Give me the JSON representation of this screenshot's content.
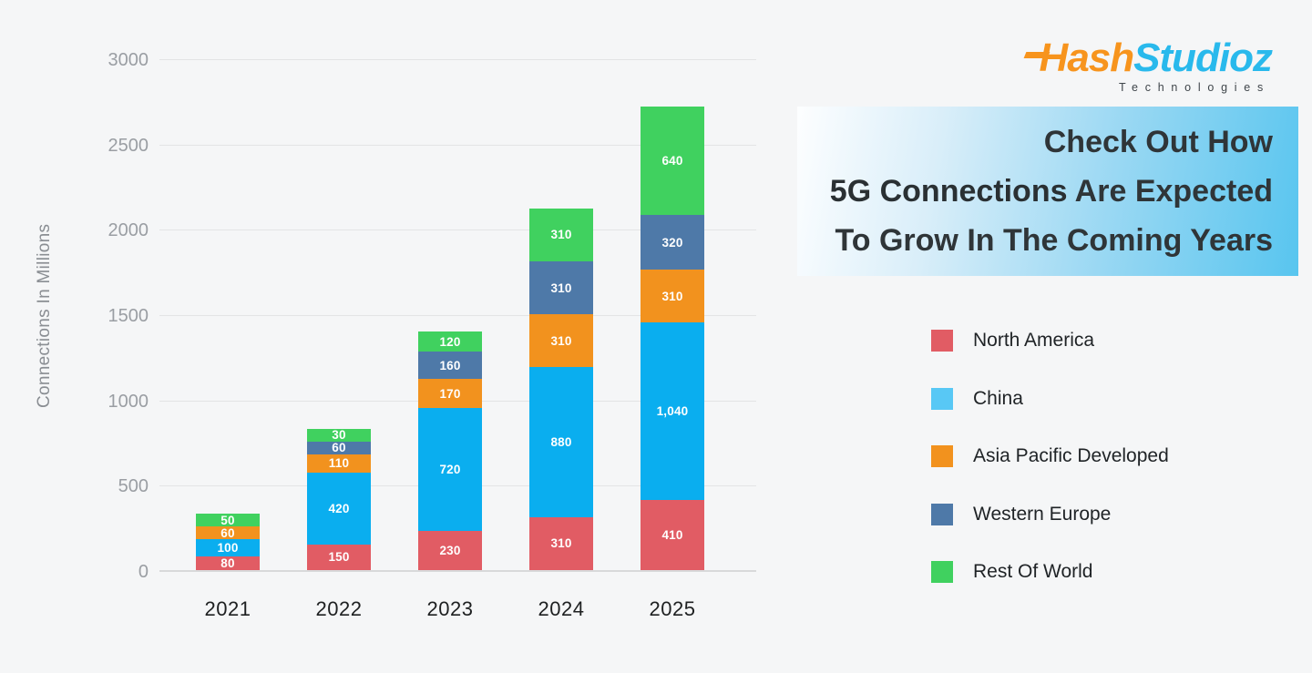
{
  "page": {
    "background": "#F5F6F7"
  },
  "logo": {
    "word_part1": "Hash",
    "word_part2": "Studioz",
    "subtitle": "Technologies",
    "color_part1": "#F7941D",
    "color_part2": "#29B9EC"
  },
  "headline": {
    "line1": "Check Out How",
    "line2_bold": "5G Connections",
    "line2_rest": " Are Expected",
    "line3": "To Grow In The Coming Years"
  },
  "legend": {
    "items": [
      {
        "label": "North America",
        "color": "#E15C64"
      },
      {
        "label": "China",
        "color": "#58C8F5"
      },
      {
        "label": "Asia Pacific Developed",
        "color": "#F2921E"
      },
      {
        "label": "Western Europe",
        "color": "#4E79A8"
      },
      {
        "label": "Rest Of World",
        "color": "#40D15F"
      }
    ]
  },
  "chart_data": {
    "type": "bar",
    "stacked": true,
    "title": "",
    "xlabel": "",
    "ylabel": "Connections In Millions",
    "categories": [
      "2021",
      "2022",
      "2023",
      "2024",
      "2025"
    ],
    "series": [
      {
        "name": "North America",
        "color": "#E15C64",
        "values": [
          80,
          150,
          230,
          310,
          410
        ]
      },
      {
        "name": "China",
        "color": "#0AAEEF",
        "values": [
          100,
          420,
          720,
          880,
          1040
        ]
      },
      {
        "name": "Asia Pacific Developed",
        "color": "#F2921E",
        "values": [
          60,
          110,
          170,
          310,
          310
        ]
      },
      {
        "name": "Western Europe",
        "color": "#4E79A8",
        "values": [
          0,
          60,
          160,
          310,
          320
        ]
      },
      {
        "name": "Rest Of World",
        "color": "#40D15F",
        "values": [
          50,
          30,
          120,
          310,
          640
        ]
      }
    ],
    "totals": [
      290,
      770,
      1400,
      2120,
      2720
    ],
    "ylim": [
      0,
      3000
    ],
    "yticks": [
      0,
      500,
      1000,
      1500,
      2000,
      2500,
      3000
    ],
    "grid": true,
    "bar_value_labels": true,
    "legend_position": "right"
  }
}
